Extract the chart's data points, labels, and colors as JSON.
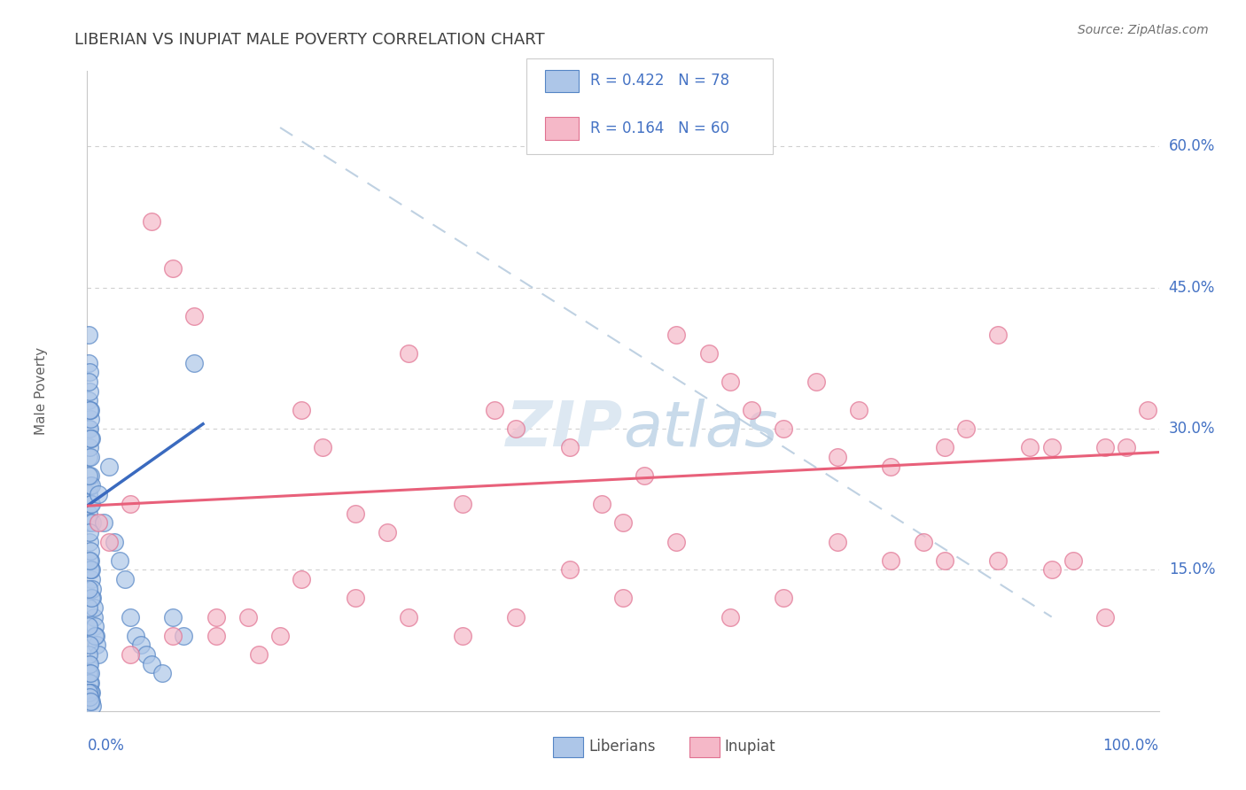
{
  "title": "LIBERIAN VS INUPIAT MALE POVERTY CORRELATION CHART",
  "source": "Source: ZipAtlas.com",
  "ylabel": "Male Poverty",
  "xlim": [
    0.0,
    1.0
  ],
  "ylim": [
    0.0,
    0.68
  ],
  "ytick_vals": [
    0.15,
    0.3,
    0.45,
    0.6
  ],
  "ytick_labels": [
    "15.0%",
    "30.0%",
    "45.0%",
    "60.0%"
  ],
  "legend_blue_r": "R = 0.422",
  "legend_blue_n": "N = 78",
  "legend_pink_r": "R = 0.164",
  "legend_pink_n": "N = 60",
  "legend_label_blue": "Liberians",
  "legend_label_pink": "Inupiat",
  "blue_color": "#adc6e8",
  "pink_color": "#f5b8c8",
  "blue_edge_color": "#5585c5",
  "pink_edge_color": "#e07090",
  "blue_line_color": "#3a6abf",
  "pink_line_color": "#e8607a",
  "diag_color": "#b8ccdf",
  "label_color": "#4472c4",
  "title_color": "#404040",
  "grid_color": "#d0d0d0",
  "blue_x": [
    0.001,
    0.002,
    0.003,
    0.004,
    0.005,
    0.006,
    0.007,
    0.008,
    0.009,
    0.01,
    0.001,
    0.002,
    0.003,
    0.004,
    0.005,
    0.006,
    0.007,
    0.001,
    0.002,
    0.003,
    0.001,
    0.002,
    0.003,
    0.004,
    0.005,
    0.001,
    0.002,
    0.003,
    0.004,
    0.001,
    0.002,
    0.003,
    0.001,
    0.002,
    0.003,
    0.004,
    0.001,
    0.002,
    0.003,
    0.004,
    0.01,
    0.015,
    0.02,
    0.025,
    0.03,
    0.035,
    0.04,
    0.045,
    0.05,
    0.055,
    0.06,
    0.07,
    0.08,
    0.09,
    0.1,
    0.001,
    0.002,
    0.003,
    0.004,
    0.005,
    0.001,
    0.002,
    0.003,
    0.001,
    0.002,
    0.001,
    0.002,
    0.003,
    0.004,
    0.001,
    0.001,
    0.002,
    0.001,
    0.002,
    0.003,
    0.001,
    0.002,
    0.003
  ],
  "blue_y": [
    0.21,
    0.18,
    0.16,
    0.14,
    0.12,
    0.1,
    0.09,
    0.08,
    0.07,
    0.06,
    0.23,
    0.2,
    0.17,
    0.15,
    0.13,
    0.11,
    0.08,
    0.27,
    0.24,
    0.22,
    0.3,
    0.28,
    0.25,
    0.22,
    0.2,
    0.33,
    0.3,
    0.27,
    0.24,
    0.37,
    0.34,
    0.31,
    0.4,
    0.36,
    0.32,
    0.29,
    0.05,
    0.04,
    0.03,
    0.02,
    0.23,
    0.2,
    0.26,
    0.18,
    0.16,
    0.14,
    0.1,
    0.08,
    0.07,
    0.06,
    0.05,
    0.04,
    0.1,
    0.08,
    0.37,
    0.04,
    0.03,
    0.02,
    0.01,
    0.005,
    0.06,
    0.05,
    0.04,
    0.09,
    0.07,
    0.11,
    0.19,
    0.15,
    0.12,
    0.25,
    0.13,
    0.16,
    0.35,
    0.32,
    0.29,
    0.02,
    0.015,
    0.01
  ],
  "pink_x": [
    0.01,
    0.02,
    0.04,
    0.06,
    0.08,
    0.1,
    0.12,
    0.15,
    0.18,
    0.2,
    0.22,
    0.25,
    0.28,
    0.3,
    0.35,
    0.38,
    0.4,
    0.45,
    0.48,
    0.5,
    0.52,
    0.55,
    0.58,
    0.6,
    0.62,
    0.65,
    0.68,
    0.7,
    0.72,
    0.75,
    0.78,
    0.8,
    0.82,
    0.85,
    0.88,
    0.9,
    0.92,
    0.95,
    0.97,
    0.99,
    0.04,
    0.08,
    0.12,
    0.16,
    0.2,
    0.25,
    0.3,
    0.35,
    0.4,
    0.45,
    0.5,
    0.55,
    0.6,
    0.65,
    0.7,
    0.75,
    0.8,
    0.85,
    0.9,
    0.95
  ],
  "pink_y": [
    0.2,
    0.18,
    0.22,
    0.52,
    0.47,
    0.42,
    0.08,
    0.1,
    0.08,
    0.32,
    0.28,
    0.21,
    0.19,
    0.38,
    0.22,
    0.32,
    0.3,
    0.28,
    0.22,
    0.2,
    0.25,
    0.4,
    0.38,
    0.35,
    0.32,
    0.3,
    0.35,
    0.27,
    0.32,
    0.26,
    0.18,
    0.28,
    0.3,
    0.4,
    0.28,
    0.28,
    0.16,
    0.28,
    0.28,
    0.32,
    0.06,
    0.08,
    0.1,
    0.06,
    0.14,
    0.12,
    0.1,
    0.08,
    0.1,
    0.15,
    0.12,
    0.18,
    0.1,
    0.12,
    0.18,
    0.16,
    0.16,
    0.16,
    0.15,
    0.1
  ],
  "blue_line_x": [
    0.0,
    0.108
  ],
  "blue_line_y": [
    0.218,
    0.305
  ],
  "pink_line_x": [
    0.0,
    1.0
  ],
  "pink_line_y": [
    0.218,
    0.275
  ],
  "diag_line_x": [
    0.18,
    0.9
  ],
  "diag_line_y": [
    0.62,
    0.1
  ]
}
